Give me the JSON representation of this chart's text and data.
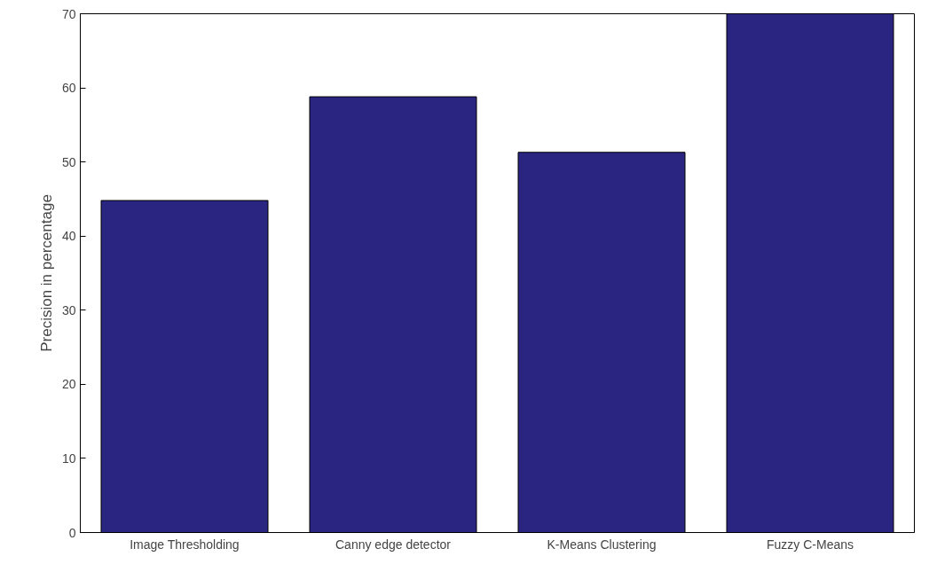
{
  "chart_data": {
    "type": "bar",
    "ylabel": "Precision in percentage",
    "categories": [
      "Image Thresholding",
      "Canny edge detector",
      "K-Means Clustering",
      "Fuzzy C-Means"
    ],
    "values": [
      44.8,
      58.8,
      51.3,
      70
    ],
    "color": "#2a2580",
    "ylim": [
      0,
      70
    ],
    "yticks": [
      0,
      10,
      20,
      30,
      40,
      50,
      60,
      70
    ],
    "grid": false
  }
}
